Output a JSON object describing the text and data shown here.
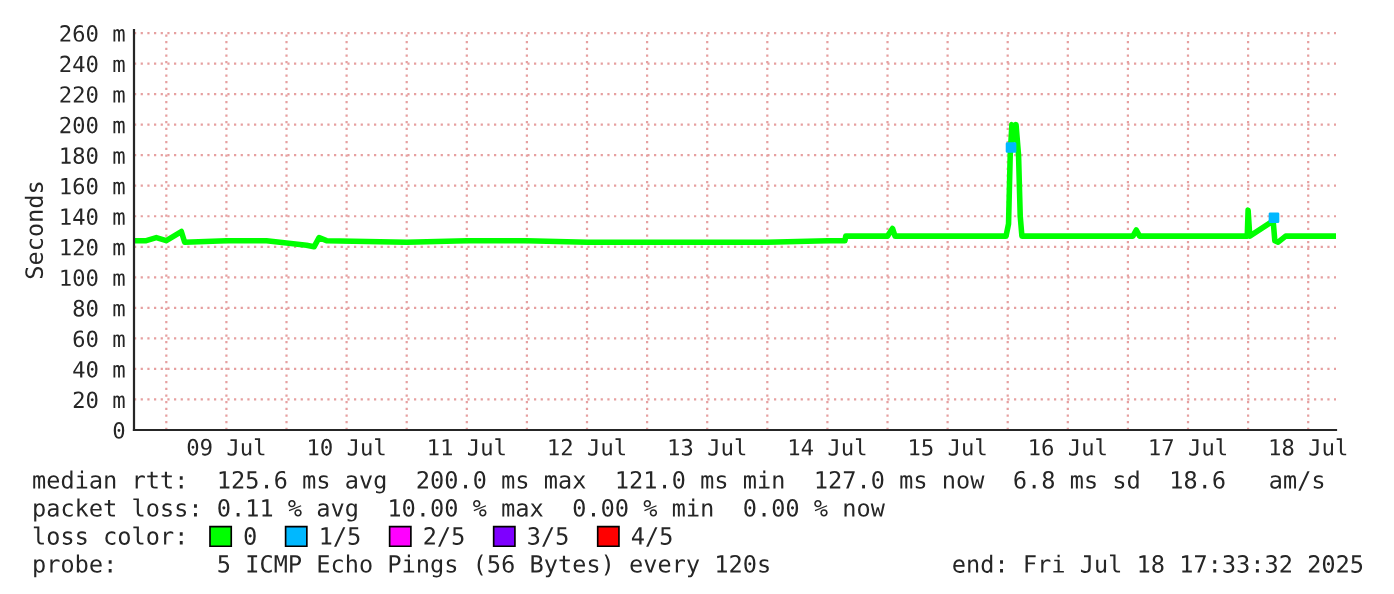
{
  "chart_data": {
    "type": "line",
    "ylabel": "Seconds",
    "legend_title": "loss color:",
    "legend": "bottom",
    "grid": true,
    "xlim": [
      "2025-07-08T17:33",
      "2025-07-18T17:33"
    ],
    "xticks": [
      {
        "value": "2025-07-09T00:00",
        "label": null
      },
      {
        "value": "2025-07-09T12:00",
        "label": "09 Jul"
      },
      {
        "value": "2025-07-10T00:00",
        "label": null
      },
      {
        "value": "2025-07-10T12:00",
        "label": "10 Jul"
      },
      {
        "value": "2025-07-11T00:00",
        "label": null
      },
      {
        "value": "2025-07-11T12:00",
        "label": "11 Jul"
      },
      {
        "value": "2025-07-12T00:00",
        "label": null
      },
      {
        "value": "2025-07-12T12:00",
        "label": "12 Jul"
      },
      {
        "value": "2025-07-13T00:00",
        "label": null
      },
      {
        "value": "2025-07-13T12:00",
        "label": "13 Jul"
      },
      {
        "value": "2025-07-14T00:00",
        "label": null
      },
      {
        "value": "2025-07-14T12:00",
        "label": "14 Jul"
      },
      {
        "value": "2025-07-15T00:00",
        "label": null
      },
      {
        "value": "2025-07-15T12:00",
        "label": "15 Jul"
      },
      {
        "value": "2025-07-16T00:00",
        "label": null
      },
      {
        "value": "2025-07-16T12:00",
        "label": "16 Jul"
      },
      {
        "value": "2025-07-17T00:00",
        "label": null
      },
      {
        "value": "2025-07-17T12:00",
        "label": "17 Jul"
      },
      {
        "value": "2025-07-18T00:00",
        "label": null
      },
      {
        "value": "2025-07-18T12:00",
        "label": "18 Jul"
      }
    ],
    "ylim": [
      0,
      262
    ],
    "yticks": [
      0,
      {
        "value": 20,
        "label": "20 m"
      },
      {
        "value": 40,
        "label": "40 m"
      },
      {
        "value": 60,
        "label": "60 m"
      },
      {
        "value": 80,
        "label": "80 m"
      },
      {
        "value": 100,
        "label": "100 m"
      },
      {
        "value": 120,
        "label": "120 m"
      },
      {
        "value": 140,
        "label": "140 m"
      },
      {
        "value": 160,
        "label": "160 m"
      },
      {
        "value": 180,
        "label": "180 m"
      },
      {
        "value": 200,
        "label": "200 m"
      },
      {
        "value": 220,
        "label": "220 m"
      },
      {
        "value": 240,
        "label": "240 m"
      },
      {
        "value": 260,
        "label": "260 m"
      }
    ],
    "series": [
      {
        "name": "0",
        "color": "#00ff00",
        "x": [
          "2025-07-08T17:40",
          "2025-07-08T20:00",
          "2025-07-08T22:00",
          "2025-07-09T00:00",
          "2025-07-09T03:00",
          "2025-07-09T03:40",
          "2025-07-09T12:00",
          "2025-07-09T20:00",
          "2025-07-10T04:00",
          "2025-07-10T05:30",
          "2025-07-10T06:30",
          "2025-07-10T08:00",
          "2025-07-11T00:00",
          "2025-07-11T12:00",
          "2025-07-12T00:00",
          "2025-07-12T12:00",
          "2025-07-13T00:00",
          "2025-07-13T12:00",
          "2025-07-14T00:00",
          "2025-07-14T12:00",
          "2025-07-14T15:30",
          "2025-07-14T15:40",
          "2025-07-15T00:00",
          "2025-07-15T01:00",
          "2025-07-15T01:30",
          "2025-07-15T12:00",
          "2025-07-15T23:40",
          "2025-07-16T00:10",
          "2025-07-16T00:30",
          "2025-07-16T00:50",
          "2025-07-16T01:10",
          "2025-07-16T01:40",
          "2025-07-16T02:10",
          "2025-07-16T02:30",
          "2025-07-16T02:50",
          "2025-07-16T12:00",
          "2025-07-17T01:00",
          "2025-07-17T01:40",
          "2025-07-17T02:20",
          "2025-07-17T12:00",
          "2025-07-17T23:50",
          "2025-07-18T00:00",
          "2025-07-18T00:20",
          "2025-07-18T05:00",
          "2025-07-18T05:20",
          "2025-07-18T06:00",
          "2025-07-18T07:30",
          "2025-07-18T17:30"
        ],
        "values": [
          124,
          124,
          126,
          124,
          130,
          123,
          124,
          124,
          121,
          120,
          126,
          124,
          123,
          124,
          124,
          123,
          123,
          123,
          123,
          124,
          124,
          127,
          127,
          132,
          127,
          127,
          127,
          135,
          180,
          200,
          190,
          200,
          180,
          140,
          127,
          127,
          127,
          131,
          127,
          127,
          127,
          144,
          127,
          137,
          124,
          123,
          127,
          127
        ]
      },
      {
        "name": "1/5",
        "color": "#00b8ff",
        "type": "scatter",
        "marker": "square",
        "x": [
          "2025-07-16T00:40",
          "2025-07-18T05:10"
        ],
        "values": [
          185,
          139
        ]
      },
      {
        "name": "2/5",
        "color": "#ff00ff",
        "type": "scatter"
      },
      {
        "name": "3/5",
        "color": "#7e00ff",
        "type": "scatter"
      },
      {
        "name": "4/5",
        "color": "#ff0000",
        "type": "scatter"
      }
    ],
    "annotations": [
      "median rtt:  125.6 ms avg  200.0 ms max  121.0 ms min  127.0 ms now  6.8 ms sd  18.6   am/s",
      "packet loss: 0.11 % avg  10.00 % max  0.00 % min  0.00 % now",
      "probe:       5 ICMP Echo Pings (56 Bytes) every 120s",
      "end: Fri Jul 18 17:33:32 2025"
    ]
  }
}
